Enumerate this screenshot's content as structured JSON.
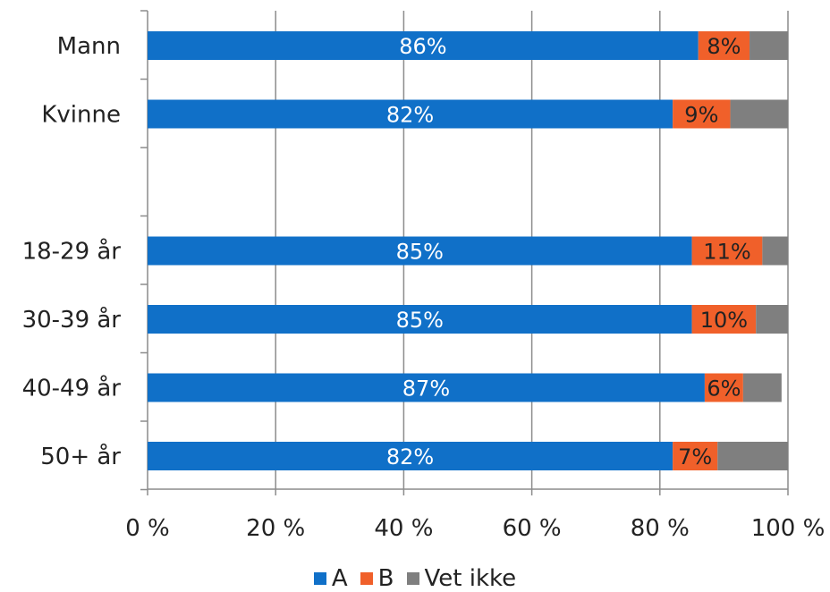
{
  "chart_data": {
    "type": "bar",
    "orientation": "horizontal",
    "stacked": true,
    "categories": [
      "Mann",
      "Kvinne",
      "",
      "18-29 år",
      "30-39 år",
      "40-49 år",
      "50+ år"
    ],
    "series": [
      {
        "name": "A",
        "color": "#1070c8",
        "label_color": "#ffffff",
        "values": [
          86,
          82,
          null,
          85,
          85,
          87,
          82
        ],
        "labels": [
          "86%",
          "82%",
          "",
          "85%",
          "85%",
          "87%",
          "82%"
        ]
      },
      {
        "name": "B",
        "color": "#f0602a",
        "label_color": "#222222",
        "values": [
          8,
          9,
          null,
          11,
          10,
          6,
          7
        ],
        "labels": [
          "8%",
          "9%",
          "",
          "11%",
          "10%",
          "6%",
          "7%"
        ]
      },
      {
        "name": "Vet ikke",
        "color": "#7f7f7f",
        "label_color": "#ffffff",
        "values": [
          6,
          9,
          null,
          4,
          5,
          6,
          11
        ],
        "labels": [
          "",
          "",
          "",
          "",
          "",
          "",
          ""
        ]
      }
    ],
    "xlim": [
      0,
      100
    ],
    "xticks": [
      0,
      20,
      40,
      60,
      80,
      100
    ],
    "xtick_labels": [
      "0 %",
      "20 %",
      "40 %",
      "60 %",
      "80 %",
      "100 %"
    ],
    "grid": true,
    "legend_position": "bottom",
    "title": "",
    "xlabel": "",
    "ylabel": ""
  }
}
